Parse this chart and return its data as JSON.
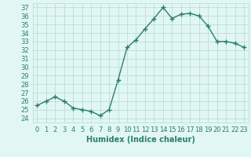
{
  "x": [
    0,
    1,
    2,
    3,
    4,
    5,
    6,
    7,
    8,
    9,
    10,
    11,
    12,
    13,
    14,
    15,
    16,
    17,
    18,
    19,
    20,
    21,
    22,
    23
  ],
  "y": [
    25.5,
    26.0,
    26.5,
    26.0,
    25.2,
    25.0,
    24.8,
    24.3,
    25.0,
    28.5,
    32.3,
    33.2,
    34.5,
    35.7,
    37.0,
    35.7,
    36.2,
    36.3,
    36.0,
    34.8,
    33.0,
    33.0,
    32.8,
    32.3
  ],
  "line_color": "#2e7d6e",
  "marker": "+",
  "markersize": 4,
  "linewidth": 1.0,
  "bg_color": "#e0f7f4",
  "grid_color": "#b8d8d0",
  "xlabel": "Humidex (Indice chaleur)",
  "xlabel_fontsize": 7,
  "ylabel_ticks": [
    24,
    25,
    26,
    27,
    28,
    29,
    30,
    31,
    32,
    33,
    34,
    35,
    36,
    37
  ],
  "ylim": [
    23.5,
    37.5
  ],
  "xlim": [
    -0.5,
    23.5
  ],
  "xticks": [
    0,
    1,
    2,
    3,
    4,
    5,
    6,
    7,
    8,
    9,
    10,
    11,
    12,
    13,
    14,
    15,
    16,
    17,
    18,
    19,
    20,
    21,
    22,
    23
  ],
  "tick_fontsize": 6
}
